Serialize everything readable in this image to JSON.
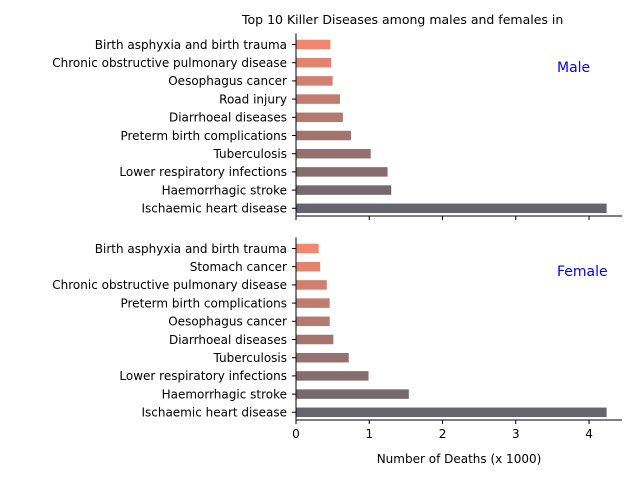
{
  "chart_data": {
    "type": "bar",
    "orientation": "horizontal",
    "title": "Top 10 Killer Diseases among males and females in",
    "xlabel": "Number of Deaths (x 1000)",
    "xlim": [
      0,
      4.45
    ],
    "xticks": [
      "0",
      "1",
      "2",
      "3",
      "4"
    ],
    "grid": false,
    "colors": {
      "light": "#f0876e",
      "dark": "#66656e",
      "tag": "#0000ff"
    },
    "panels": [
      {
        "name": "Male",
        "categories": [
          "Birth asphyxia and birth trauma",
          "Chronic obstructive pulmonary disease",
          "Oesophagus cancer",
          "Road injury",
          "Diarrhoeal diseases",
          "Preterm birth complications",
          "Tuberculosis",
          "Lower respiratory infections",
          "Haemorrhagic stroke",
          "Ischaemic heart disease"
        ],
        "values": [
          0.47,
          0.48,
          0.5,
          0.6,
          0.64,
          0.75,
          1.02,
          1.25,
          1.3,
          4.24
        ]
      },
      {
        "name": "Female",
        "categories": [
          "Birth asphyxia and birth trauma",
          "Stomach cancer",
          "Chronic obstructive pulmonary disease",
          "Preterm birth complications",
          "Oesophagus cancer",
          "Diarrhoeal diseases",
          "Tuberculosis",
          "Lower respiratory infections",
          "Haemorrhagic stroke",
          "Ischaemic heart disease"
        ],
        "values": [
          0.31,
          0.33,
          0.42,
          0.46,
          0.46,
          0.51,
          0.72,
          0.99,
          1.54,
          4.24
        ]
      }
    ]
  }
}
